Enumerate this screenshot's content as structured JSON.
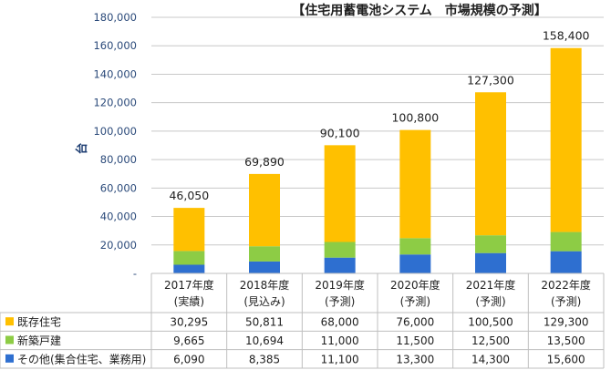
{
  "chart_data": {
    "type": "bar",
    "stacked": true,
    "title": "【住宅用蓄電池システム　市場規模の予測】",
    "ylabel": "台",
    "ylim": [
      0,
      180000
    ],
    "yticks": [
      "-",
      "20,000",
      "40,000",
      "60,000",
      "80,000",
      "100,000",
      "120,000",
      "140,000",
      "160,000",
      "180,000"
    ],
    "grid": true,
    "categories": [
      [
        "2017年度",
        "(実績)"
      ],
      [
        "2018年度",
        "(見込み)"
      ],
      [
        "2019年度",
        "(予測)"
      ],
      [
        "2020年度",
        "(予測)"
      ],
      [
        "2021年度",
        "(予測)"
      ],
      [
        "2022年度",
        "(予測)"
      ]
    ],
    "series": [
      {
        "name": "その他(集合住宅、業務用)",
        "color": "#2e6fd0",
        "values": [
          6090,
          8385,
          11100,
          13300,
          14300,
          15600
        ],
        "labels": [
          "6,090",
          "8,385",
          "11,100",
          "13,300",
          "14,300",
          "15,600"
        ]
      },
      {
        "name": "新築戸建",
        "color": "#8dcc45",
        "values": [
          9665,
          10694,
          11000,
          11500,
          12500,
          13500
        ],
        "labels": [
          "9,665",
          "10,694",
          "11,000",
          "11,500",
          "12,500",
          "13,500"
        ]
      },
      {
        "name": "既存住宅",
        "color": "#ffc000",
        "values": [
          30295,
          50811,
          68000,
          76000,
          100500,
          129300
        ],
        "labels": [
          "30,295",
          "50,811",
          "68,000",
          "76,000",
          "100,500",
          "129,300"
        ]
      }
    ],
    "totals": [
      "46,050",
      "69,890",
      "90,100",
      "100,800",
      "127,300",
      "158,400"
    ],
    "table_row_order": [
      2,
      1,
      0
    ]
  }
}
